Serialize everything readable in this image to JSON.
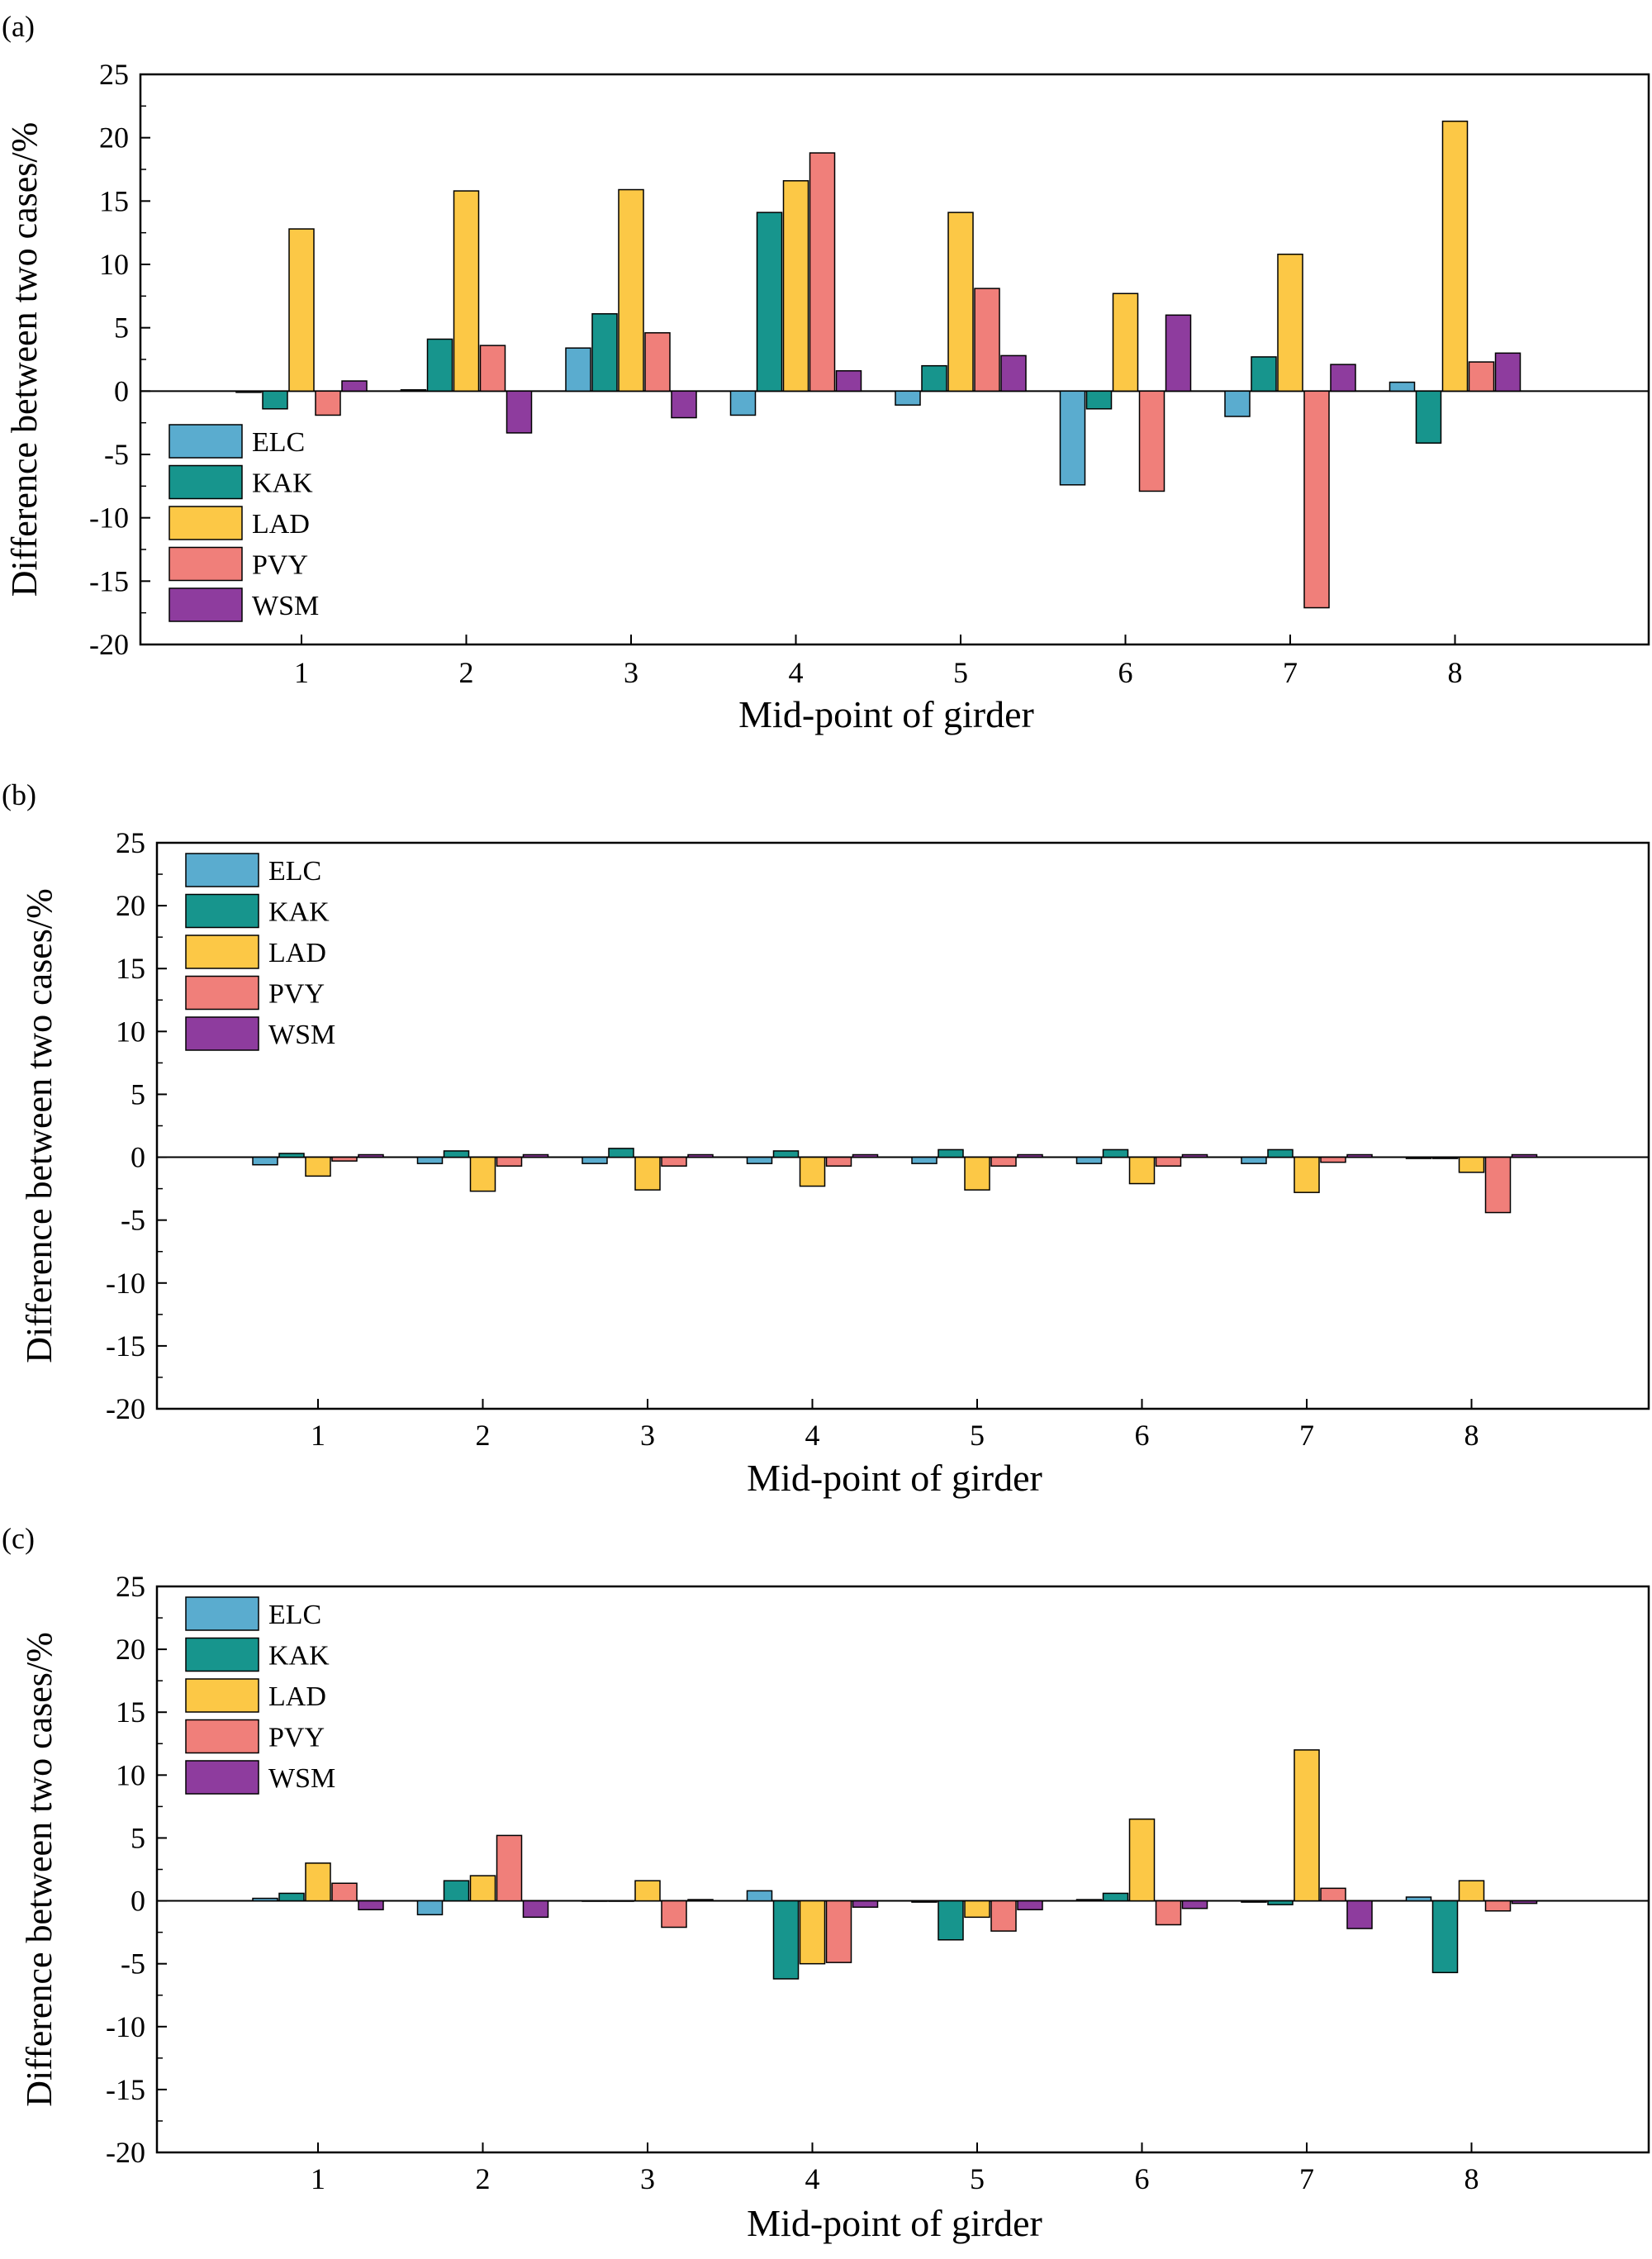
{
  "colors": {
    "ELC": "#5aaccf",
    "KAK": "#17958d",
    "LAD": "#fcc846",
    "PVY": "#f07f7a",
    "WSM": "#8e3c9e"
  },
  "chart_data": [
    {
      "type": "bar",
      "panel_label": "(a)",
      "xlabel": "Mid-point of girder",
      "ylabel": "Difference between two cases/%",
      "categories": [
        "1",
        "2",
        "3",
        "4",
        "5",
        "6",
        "7",
        "8"
      ],
      "yticks": [
        "25",
        "20",
        "15",
        "10",
        "5",
        "0",
        "-5",
        "-10",
        "-15",
        "-20"
      ],
      "ylim": [
        -20,
        25
      ],
      "legend_position": "lower-left",
      "series": [
        {
          "name": "ELC",
          "values": [
            -0.1,
            0.1,
            3.4,
            -1.9,
            -1.1,
            -7.4,
            -2.0,
            0.7
          ]
        },
        {
          "name": "KAK",
          "values": [
            -1.4,
            4.1,
            6.1,
            14.1,
            2.0,
            -1.4,
            2.7,
            -4.1
          ]
        },
        {
          "name": "LAD",
          "values": [
            12.8,
            15.8,
            15.9,
            16.6,
            14.1,
            7.7,
            10.8,
            21.3
          ]
        },
        {
          "name": "PVY",
          "values": [
            -1.9,
            3.6,
            4.6,
            18.8,
            8.1,
            -7.9,
            -17.1,
            2.3
          ]
        },
        {
          "name": "WSM",
          "values": [
            0.8,
            -3.3,
            -2.1,
            1.6,
            2.8,
            6.0,
            2.1,
            3.0
          ]
        }
      ]
    },
    {
      "type": "bar",
      "panel_label": "(b)",
      "xlabel": "Mid-point of girder",
      "ylabel": "Difference between two cases/%",
      "categories": [
        "1",
        "2",
        "3",
        "4",
        "5",
        "6",
        "7",
        "8"
      ],
      "yticks": [
        "25",
        "20",
        "15",
        "10",
        "5",
        "0",
        "-5",
        "-10",
        "-15",
        "-20"
      ],
      "ylim": [
        -20,
        25
      ],
      "legend_position": "top-left",
      "series": [
        {
          "name": "ELC",
          "values": [
            -0.6,
            -0.5,
            -0.5,
            -0.5,
            -0.5,
            -0.5,
            -0.5,
            -0.1
          ]
        },
        {
          "name": "KAK",
          "values": [
            0.3,
            0.5,
            0.7,
            0.5,
            0.6,
            0.6,
            0.6,
            -0.1
          ]
        },
        {
          "name": "LAD",
          "values": [
            -1.5,
            -2.7,
            -2.6,
            -2.3,
            -2.6,
            -2.1,
            -2.8,
            -1.2
          ]
        },
        {
          "name": "PVY",
          "values": [
            -0.3,
            -0.7,
            -0.7,
            -0.7,
            -0.7,
            -0.7,
            -0.4,
            -4.4
          ]
        },
        {
          "name": "WSM",
          "values": [
            0.2,
            0.2,
            0.2,
            0.2,
            0.2,
            0.2,
            0.2,
            0.2
          ]
        }
      ]
    },
    {
      "type": "bar",
      "panel_label": "(c)",
      "xlabel": "Mid-point of girder",
      "ylabel": "Difference between two cases/%",
      "categories": [
        "1",
        "2",
        "3",
        "4",
        "5",
        "6",
        "7",
        "8"
      ],
      "yticks": [
        "25",
        "20",
        "15",
        "10",
        "5",
        "0",
        "-5",
        "-10",
        "-15",
        "-20"
      ],
      "ylim": [
        -20,
        25
      ],
      "legend_position": "top-left",
      "series": [
        {
          "name": "ELC",
          "values": [
            0.2,
            -1.1,
            0.0,
            0.8,
            -0.1,
            0.1,
            -0.1,
            0.3
          ]
        },
        {
          "name": "KAK",
          "values": [
            0.6,
            1.6,
            0.0,
            -6.2,
            -3.1,
            0.6,
            -0.3,
            -5.7
          ]
        },
        {
          "name": "LAD",
          "values": [
            3.0,
            2.0,
            1.6,
            -5.0,
            -1.3,
            6.5,
            12.0,
            1.6
          ]
        },
        {
          "name": "PVY",
          "values": [
            1.4,
            5.2,
            -2.1,
            -4.9,
            -2.4,
            -1.9,
            1.0,
            -0.8
          ]
        },
        {
          "name": "WSM",
          "values": [
            -0.7,
            -1.3,
            0.1,
            -0.5,
            -0.7,
            -0.6,
            -2.2,
            -0.2
          ]
        }
      ]
    }
  ]
}
